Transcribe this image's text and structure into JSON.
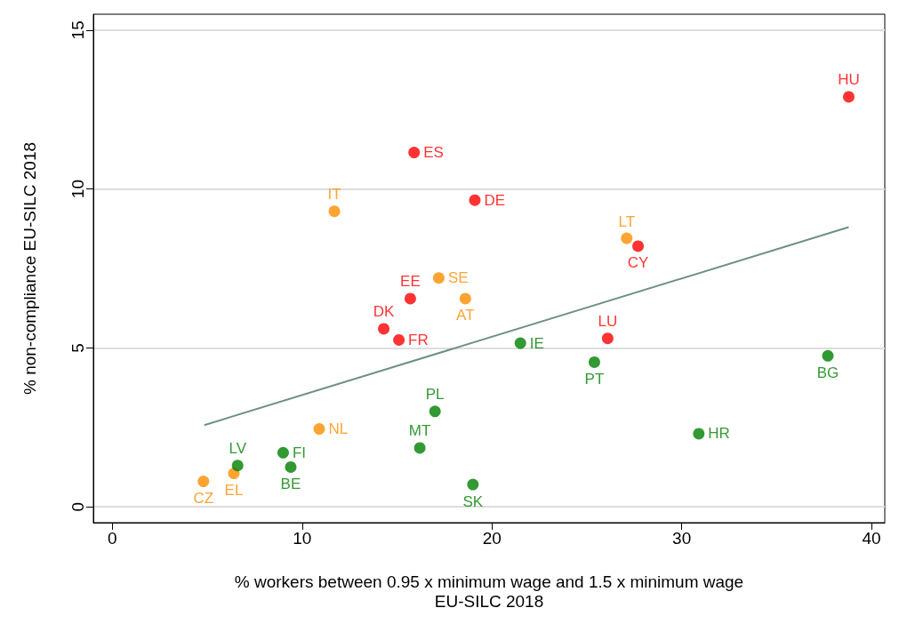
{
  "chart_data": {
    "type": "scatter",
    "xlabel": "% workers between 0.95 x minimum wage and 1.5 x minimum wage\nEU-SILC 2018",
    "ylabel": "% non-compliance EU-SILC 2018",
    "xlim": [
      -1,
      40.7
    ],
    "xticks": [
      0,
      10,
      20,
      30,
      40
    ],
    "ylim": [
      -0.5,
      15.5
    ],
    "yticks": [
      0,
      5,
      10,
      15
    ],
    "grid": "y",
    "marker": "circle",
    "series": [
      {
        "color": "#ff0000",
        "x": [
          38.8,
          15.9,
          19.1,
          27.7,
          15.7,
          14.3,
          15.1,
          26.1
        ],
        "values": [
          12.9,
          11.15,
          9.65,
          8.2,
          6.55,
          5.6,
          5.25,
          5.3
        ],
        "value_labels": [
          "HU",
          "ES",
          "DE",
          "CY",
          "EE",
          "DK",
          "FR",
          "LU"
        ]
      },
      {
        "color": "#ff8c00",
        "x": [
          11.7,
          27.1,
          17.2,
          18.6,
          10.9,
          6.4,
          4.8
        ],
        "values": [
          9.3,
          8.45,
          7.2,
          6.55,
          2.45,
          1.05,
          0.8
        ],
        "value_labels": [
          "IT",
          "LT",
          "SE",
          "AT",
          "NL",
          "EL",
          "CZ"
        ]
      },
      {
        "color": "#007f00",
        "x": [
          21.5,
          25.4,
          37.7,
          17.0,
          30.9,
          16.2,
          9.0,
          6.6,
          9.4,
          19.0
        ],
        "values": [
          5.15,
          4.55,
          4.75,
          3.0,
          2.3,
          1.85,
          1.7,
          1.3,
          1.25,
          0.7
        ],
        "value_labels": [
          "IE",
          "PT",
          "BG",
          "PL",
          "HR",
          "MT",
          "FI",
          "LV",
          "BE",
          "SK"
        ]
      },
      {
        "type": "line",
        "color": "#6e8f85",
        "marker": "none",
        "x": [
          4.85,
          38.8
        ],
        "values": [
          2.57,
          8.8
        ]
      }
    ]
  }
}
